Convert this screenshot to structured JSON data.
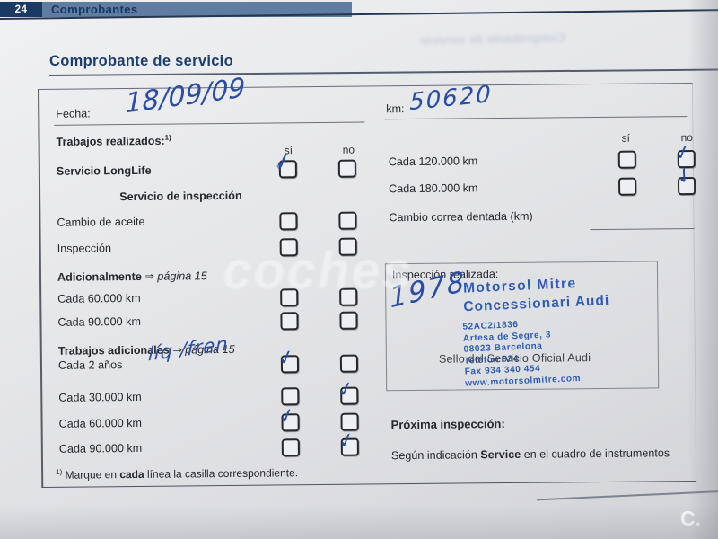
{
  "header": {
    "page_number": "24",
    "title": "Comprobantes"
  },
  "title": "Comprobante de servicio",
  "ghost_title": "Comprobante de servicio",
  "watermark": "coches",
  "corner_mark": "C.",
  "colors": {
    "accent_navy": "#1d3e6b",
    "bar_blue": "#5f7ca1",
    "hand_blue": "#2b4da3",
    "stamp_blue": "#2e5cb5"
  },
  "fecha": {
    "label": "Fecha:",
    "value": "18/09/09"
  },
  "km": {
    "label": "km:",
    "value": "50620"
  },
  "left": {
    "title": "Trabajos realizados:",
    "title_sup": "1)",
    "col_si": "sí",
    "col_no": "no",
    "rows": [
      {
        "label": "Servicio LongLife",
        "si": "check-loop",
        "no": ""
      },
      {
        "label": "Servicio de inspección"
      },
      {
        "label": "Cambio de aceite",
        "si": "",
        "no": ""
      },
      {
        "label": "Inspección",
        "si": "",
        "no": ""
      },
      {
        "bold": "Adicionalmente",
        "arrow": "⇒",
        "italic": "página 15"
      },
      {
        "label": "Cada 60.000 km",
        "si": "",
        "no": ""
      },
      {
        "label": "Cada 90.000 km",
        "si": "",
        "no": ""
      },
      {
        "bold": "Trabajos adicionales",
        "arrow": "⇒",
        "italic": "página 15"
      },
      {
        "label": "Cada 2 años",
        "note": "líq /fren",
        "si": "check",
        "no": ""
      },
      {
        "label": "Cada 30.000 km",
        "si": "",
        "no": "check"
      },
      {
        "label": "Cada 60.000 km",
        "si": "check",
        "no": ""
      },
      {
        "label": "Cada 90.000 km",
        "si": "",
        "no": "check"
      }
    ],
    "footnote": {
      "sup": "1)",
      "pre": " Marque en ",
      "bold": "cada",
      "post": " línea la casilla correspondiente."
    }
  },
  "right": {
    "col_si": "sí",
    "col_no": "no",
    "rows": [
      {
        "label": "Cada 120.000 km",
        "si": "",
        "no": "check"
      },
      {
        "label": "Cada 180.000 km",
        "si": "",
        "no": "check-curl"
      }
    ],
    "correa_label": "Cambio correa dentada (km)",
    "stamp": {
      "label": "Inspección realizada:",
      "handwritten": "1978",
      "line1": "Motorsol Mitre",
      "line2": "Concessionari Audi",
      "small_lines": [
        "52AC2/1836",
        "Artesa de Segre, 3",
        "08023 Barcelona",
        "Teléfon 934",
        "Fax 934 340 454",
        "www.motorsolmitre.com"
      ],
      "overlay": "Sello del Servicio Oficial Audi"
    },
    "proxima_title": "Próxima inspección:",
    "segun": {
      "pre": "Según indicación ",
      "bold": "Service",
      "post": " en el cuadro de instrumentos"
    }
  }
}
